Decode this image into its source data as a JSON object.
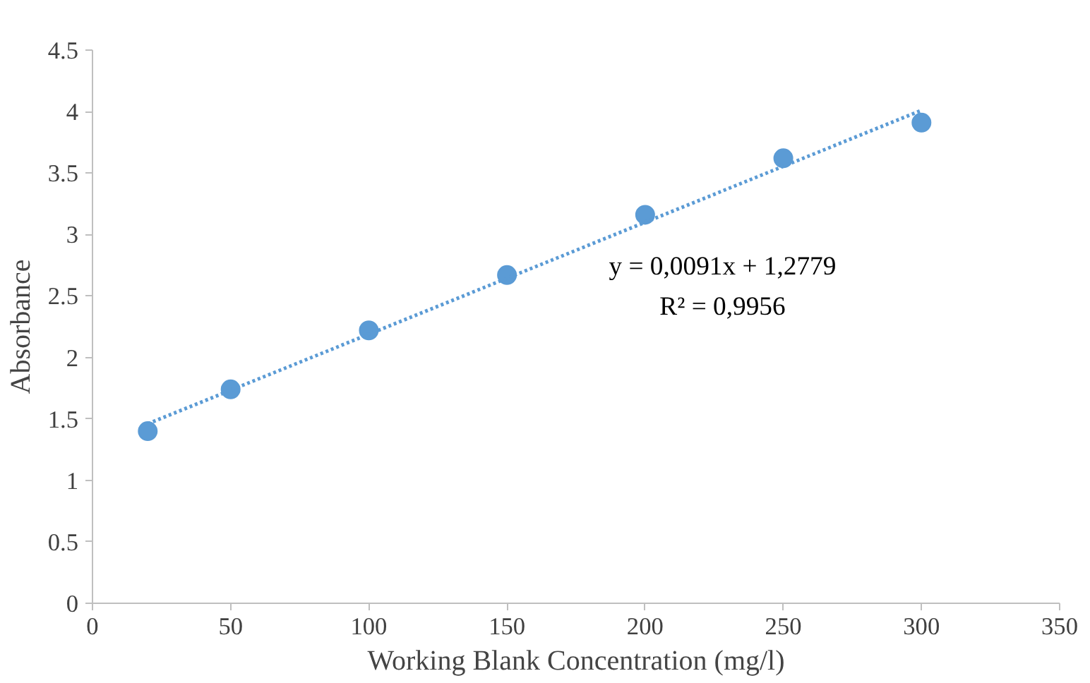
{
  "chart_data": {
    "type": "scatter",
    "xlabel": "Working Blank Concentration (mg/l)",
    "ylabel": "Absorbance",
    "x": [
      20,
      50,
      100,
      150,
      200,
      250,
      300
    ],
    "series": [
      {
        "color": "#5b9bd5",
        "values": [
          1.4,
          1.74,
          2.22,
          2.67,
          3.16,
          3.62,
          3.91
        ],
        "marker": "circle"
      },
      {
        "type": "line",
        "color": "#5b9bd5",
        "x": [
          20,
          300
        ],
        "values": [
          1.46,
          4.01
        ],
        "line_style": "dotted",
        "marker": "none"
      }
    ],
    "annotations": [
      "y = 0,0091x + 1,2779",
      "R² = 0,9956"
    ],
    "xlim": [
      0,
      350
    ],
    "xticks": [
      0,
      50,
      100,
      150,
      200,
      250,
      300,
      350
    ],
    "ylim": [
      0,
      4.5
    ],
    "yticks": [
      0,
      0.5,
      1,
      1.5,
      2,
      2.5,
      3,
      3.5,
      4,
      4.5
    ],
    "grid": false
  }
}
